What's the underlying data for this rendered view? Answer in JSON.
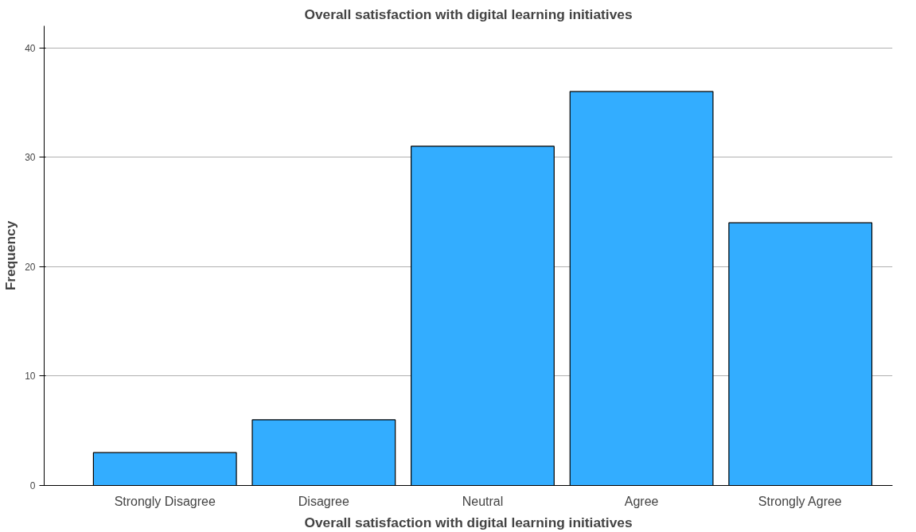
{
  "chart_data": {
    "type": "bar",
    "title": "Overall satisfaction with digital learning initiatives",
    "xlabel": "Overall satisfaction with digital learning initiatives",
    "ylabel": "Frequency",
    "categories": [
      "Strongly Disagree",
      "Disagree",
      "Neutral",
      "Agree",
      "Strongly Agree"
    ],
    "values": [
      3,
      6,
      31,
      36,
      24
    ],
    "color": "#33adff",
    "ylim": [
      0,
      42
    ],
    "yticks": [
      0,
      10,
      20,
      30,
      40
    ],
    "grid": "y"
  }
}
